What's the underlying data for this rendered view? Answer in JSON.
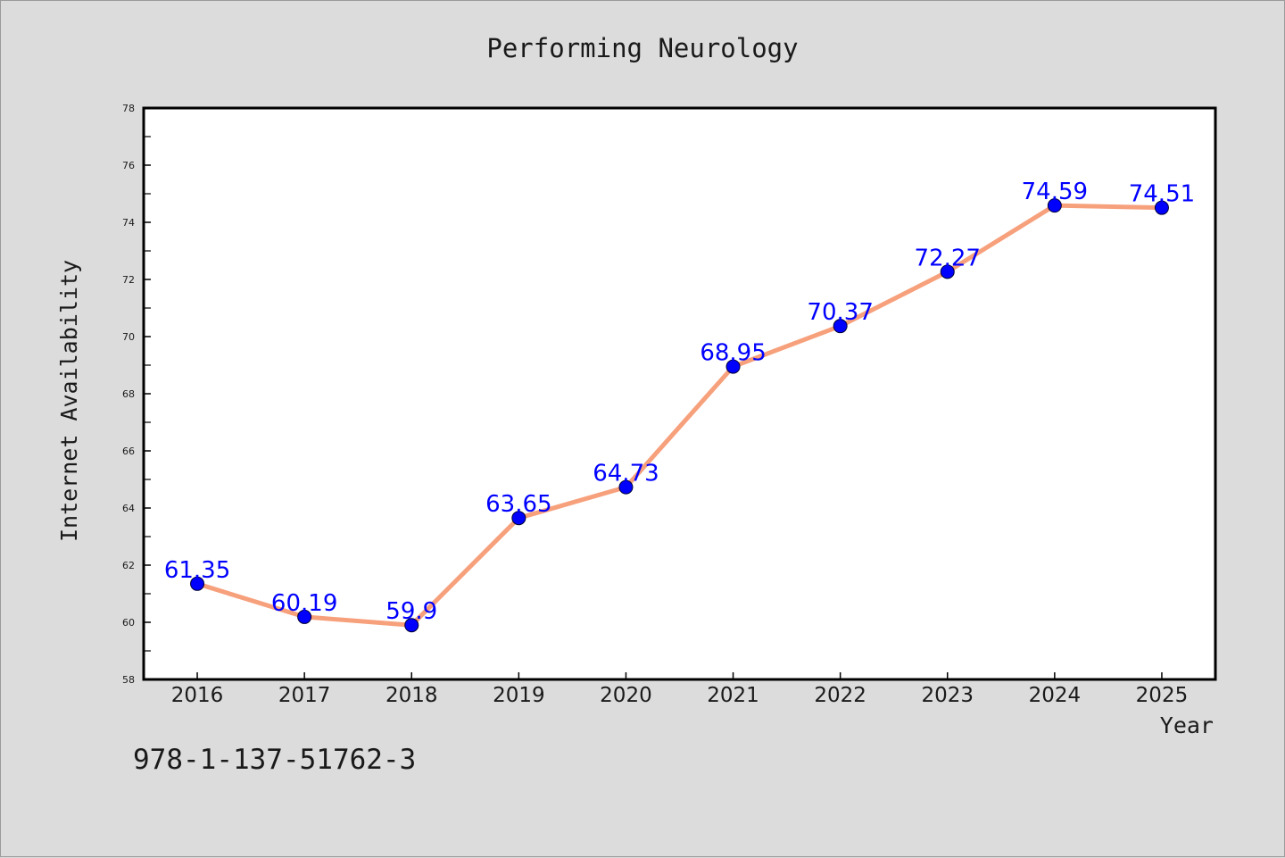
{
  "colors": {
    "background": "#dcdcdc",
    "plot_background": "#ffffff",
    "line": "#f7a07c",
    "marker": "#0000ff",
    "data_label": "#0000ff",
    "text": "#1a1a1a"
  },
  "chart_data": {
    "type": "line",
    "title": "Performing Neurology",
    "xlabel": "Year",
    "ylabel": "Internet Availability",
    "categories": [
      "2016",
      "2017",
      "2018",
      "2019",
      "2020",
      "2021",
      "2022",
      "2023",
      "2024",
      "2025"
    ],
    "series": [
      {
        "values": [
          61.35,
          60.19,
          59.9,
          63.65,
          64.73,
          68.95,
          70.37,
          72.27,
          74.59,
          74.51
        ]
      }
    ],
    "data_labels": [
      "61.35",
      "60.19",
      "59.9",
      "63.65",
      "64.73",
      "68.95",
      "70.37",
      "72.27",
      "74.59",
      "74.51"
    ],
    "ylim": [
      58,
      78
    ],
    "yticks": [
      "58",
      "60",
      "62",
      "64",
      "66",
      "68",
      "70",
      "72",
      "74",
      "76",
      "78"
    ],
    "grid": false,
    "legend": "none"
  },
  "footer": {
    "code": "978-1-137-51762-3"
  }
}
